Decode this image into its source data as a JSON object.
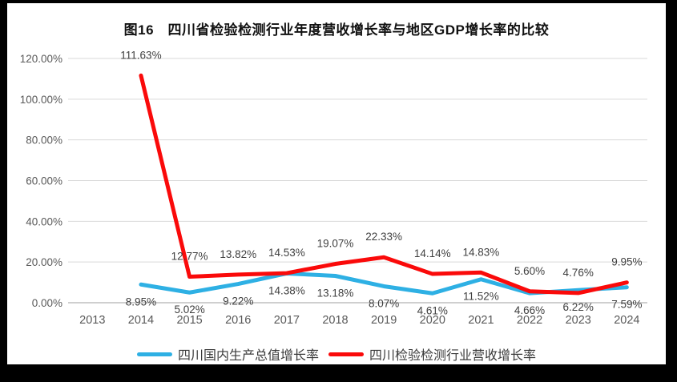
{
  "chart_data": {
    "type": "line",
    "title": "图16　四川省检验检测行业年度营收增长率与地区GDP增长率的比较",
    "categories": [
      "2013",
      "2014",
      "2015",
      "2016",
      "2017",
      "2018",
      "2019",
      "2020",
      "2021",
      "2022",
      "2023",
      "2024"
    ],
    "series": [
      {
        "name": "四川国内生产总值增长率",
        "color": "#2eb0e4",
        "label_position": "below",
        "values": [
          null,
          8.95,
          5.02,
          9.22,
          14.38,
          13.18,
          8.07,
          4.61,
          11.52,
          4.66,
          6.22,
          7.59
        ]
      },
      {
        "name": "四川检验检测行业营收增长率",
        "color": "#fa0a0a",
        "label_position": "above",
        "values": [
          null,
          111.63,
          12.77,
          13.82,
          14.53,
          19.07,
          22.33,
          14.14,
          14.83,
          5.6,
          4.76,
          9.95
        ]
      }
    ],
    "xlabel": "",
    "ylabel": "",
    "ylim": [
      0,
      120
    ],
    "yticks": [
      0,
      20,
      40,
      60,
      80,
      100,
      120
    ],
    "ytick_format": "0.00%",
    "grid": true,
    "legend_position": "bottom",
    "colors": {
      "page_background": "#000000",
      "panel_background": "#ffffff",
      "gridline": "#d9d9d9",
      "axis_line": "#bfbfbf",
      "tick_text": "#595959",
      "data_label_text": "#3f3f3f"
    }
  }
}
